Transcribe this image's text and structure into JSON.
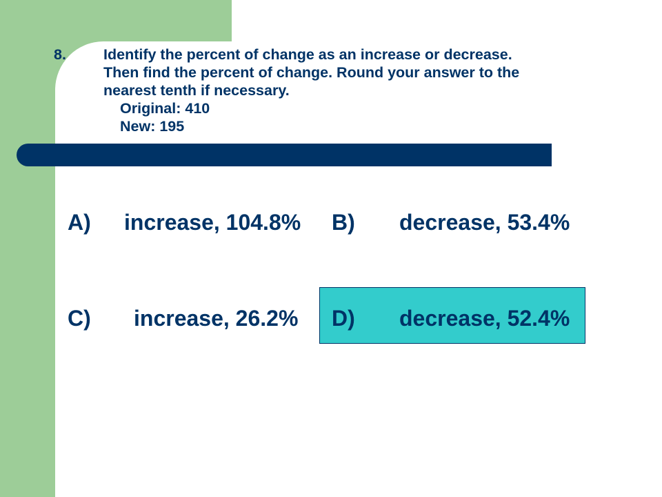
{
  "question": {
    "number": "8.",
    "lines": [
      "Identify the percent of change as an increase or decrease.",
      "Then find the percent of change.  Round your answer to the",
      "nearest tenth if necessary."
    ],
    "original": "Original: 410",
    "new": "New: 195"
  },
  "answers": [
    {
      "letter": "A)",
      "text": "increase, 104.8%"
    },
    {
      "letter": "B)",
      "text": "decrease, 53.4%"
    },
    {
      "letter": "C)",
      "text": "increase, 26.2%"
    },
    {
      "letter": "D)",
      "text": "decrease, 52.4%",
      "highlighted": true
    }
  ],
  "colors": {
    "green": "#9dcd98",
    "navy": "#003366",
    "highlight": "#33cccc"
  }
}
